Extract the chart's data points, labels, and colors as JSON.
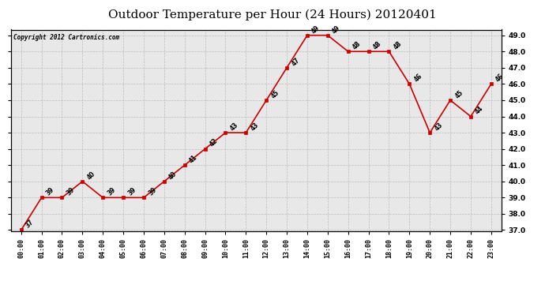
{
  "title": "Outdoor Temperature per Hour (24 Hours) 20120401",
  "copyright": "Copyright 2012 Cartronics.com",
  "hours": [
    "00:00",
    "01:00",
    "02:00",
    "03:00",
    "04:00",
    "05:00",
    "06:00",
    "07:00",
    "08:00",
    "09:00",
    "10:00",
    "11:00",
    "12:00",
    "13:00",
    "14:00",
    "15:00",
    "16:00",
    "17:00",
    "18:00",
    "19:00",
    "20:00",
    "21:00",
    "22:00",
    "23:00"
  ],
  "temperatures": [
    37,
    39,
    39,
    40,
    39,
    39,
    39,
    40,
    41,
    42,
    43,
    43,
    45,
    47,
    49,
    49,
    48,
    48,
    48,
    46,
    43,
    45,
    44,
    46
  ],
  "line_color": "#cc0000",
  "marker_color": "#cc0000",
  "background_color": "#e8e8e8",
  "grid_color": "#bbbbbb",
  "title_fontsize": 11,
  "ylim_min": 37.0,
  "ylim_max": 49.0,
  "ytick_step": 1.0
}
